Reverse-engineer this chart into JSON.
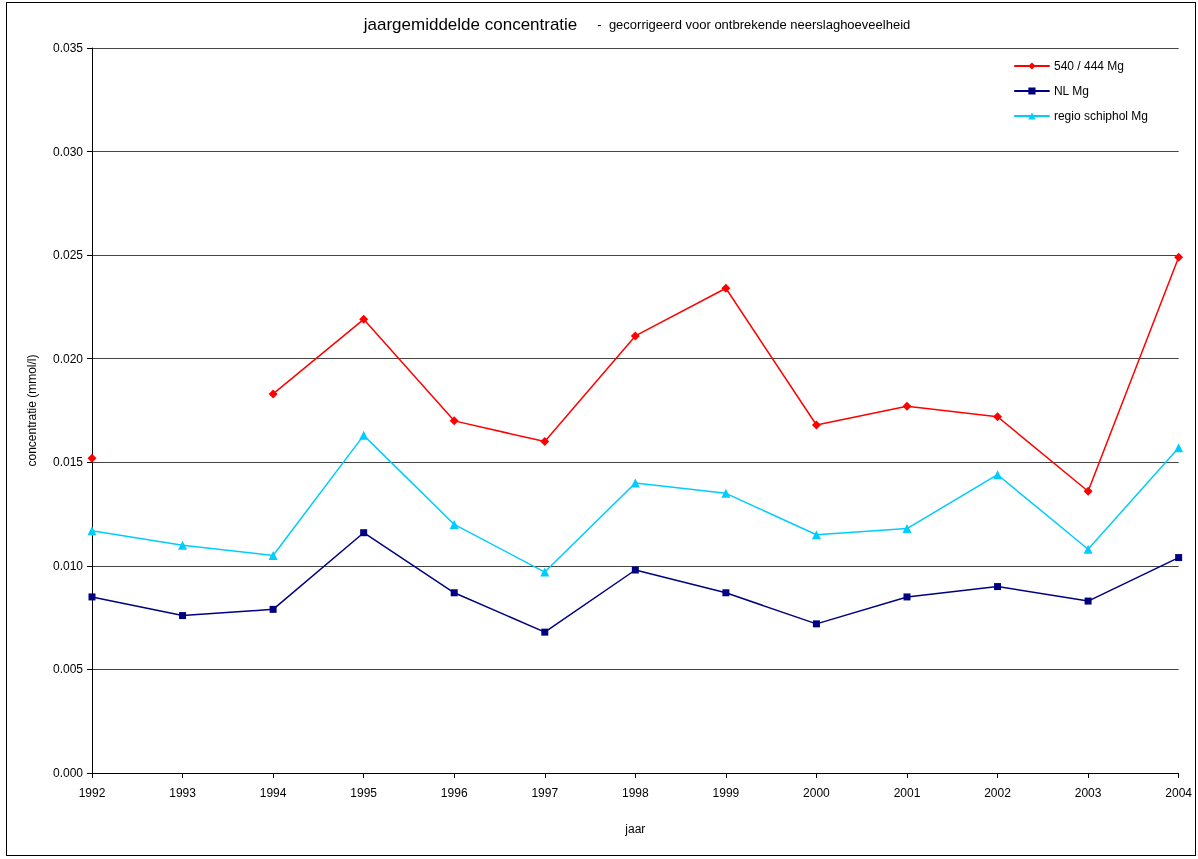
{
  "chart_data": {
    "type": "line",
    "title": "jaargemiddelde concentratie",
    "subtitle": "-  gecorrigeerd voor ontbrekende neerslaghoeveelheid",
    "xlabel": "jaar",
    "ylabel": "concentratie (mmol/l)",
    "categories": [
      "1992",
      "1993",
      "1994",
      "1995",
      "1996",
      "1997",
      "1998",
      "1999",
      "2000",
      "2001",
      "2002",
      "2003",
      "2004"
    ],
    "series": [
      {
        "name": "540 / 444 Mg",
        "color": "#ff0000",
        "marker": "diamond",
        "values": [
          0.0152,
          null,
          0.0183,
          0.0219,
          0.017,
          0.016,
          0.0211,
          0.0234,
          0.0168,
          0.0177,
          0.0172,
          0.0136,
          0.0249
        ]
      },
      {
        "name": "NL Mg",
        "color": "#000080",
        "marker": "square",
        "values": [
          0.0085,
          0.0076,
          0.0079,
          0.0116,
          0.0087,
          0.0068,
          0.0098,
          0.0087,
          0.0072,
          0.0085,
          0.009,
          0.0083,
          0.0104
        ]
      },
      {
        "name": "regio schiphol Mg",
        "color": "#00ccff",
        "marker": "triangle",
        "values": [
          0.0117,
          0.011,
          0.0105,
          0.0163,
          0.012,
          0.0097,
          0.014,
          0.0135,
          0.0115,
          0.0118,
          0.0144,
          0.0108,
          0.0157
        ]
      }
    ],
    "ylim": [
      0,
      0.035
    ],
    "yticks": [
      {
        "value": 0,
        "label": "0.000"
      },
      0.005,
      {
        "value": 0.01,
        "label": "0.010"
      },
      0.015,
      {
        "value": 0.02,
        "label": "0.020"
      },
      0.025,
      {
        "value": 0.03,
        "label": "0.030"
      },
      0.035
    ],
    "grid": "y",
    "legend": "top right"
  }
}
